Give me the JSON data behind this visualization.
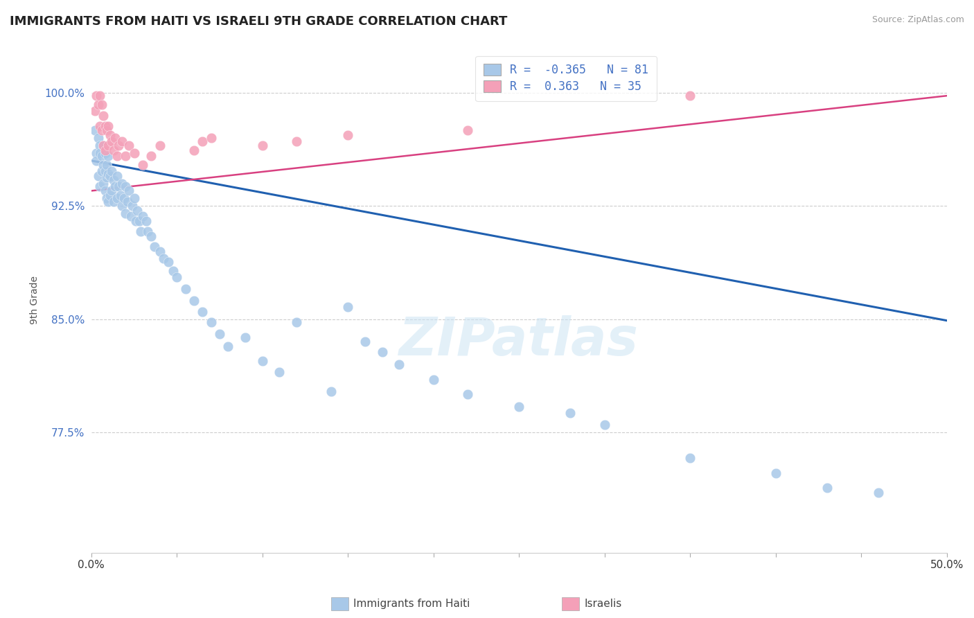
{
  "title": "IMMIGRANTS FROM HAITI VS ISRAELI 9TH GRADE CORRELATION CHART",
  "source": "Source: ZipAtlas.com",
  "ylabel": "9th Grade",
  "xlim": [
    0.0,
    0.5
  ],
  "ylim": [
    0.695,
    1.03
  ],
  "yticks": [
    0.775,
    0.85,
    0.925,
    1.0
  ],
  "yticklabels": [
    "77.5%",
    "85.0%",
    "92.5%",
    "100.0%"
  ],
  "blue_R": -0.365,
  "blue_N": 81,
  "pink_R": 0.363,
  "pink_N": 35,
  "blue_color": "#a8c8e8",
  "pink_color": "#f4a0b8",
  "blue_line_color": "#2060b0",
  "pink_line_color": "#d84080",
  "watermark": "ZIPatlas",
  "legend_label_blue": "Immigrants from Haiti",
  "legend_label_pink": "Israelis",
  "blue_line_x0": 0.0,
  "blue_line_y0": 0.955,
  "blue_line_x1": 0.5,
  "blue_line_y1": 0.849,
  "pink_line_x0": 0.0,
  "pink_line_x1": 0.5,
  "pink_line_y0": 0.935,
  "pink_line_y1": 0.998,
  "blue_x": [
    0.002,
    0.003,
    0.003,
    0.004,
    0.004,
    0.005,
    0.005,
    0.005,
    0.006,
    0.006,
    0.007,
    0.007,
    0.007,
    0.008,
    0.008,
    0.008,
    0.009,
    0.009,
    0.009,
    0.01,
    0.01,
    0.01,
    0.011,
    0.011,
    0.012,
    0.012,
    0.013,
    0.013,
    0.014,
    0.015,
    0.015,
    0.016,
    0.017,
    0.018,
    0.018,
    0.019,
    0.02,
    0.02,
    0.021,
    0.022,
    0.023,
    0.024,
    0.025,
    0.026,
    0.027,
    0.028,
    0.029,
    0.03,
    0.032,
    0.033,
    0.035,
    0.037,
    0.04,
    0.042,
    0.045,
    0.048,
    0.05,
    0.055,
    0.06,
    0.065,
    0.07,
    0.075,
    0.08,
    0.09,
    0.1,
    0.11,
    0.12,
    0.14,
    0.15,
    0.16,
    0.17,
    0.18,
    0.2,
    0.22,
    0.25,
    0.28,
    0.3,
    0.35,
    0.4,
    0.43,
    0.46
  ],
  "blue_y": [
    0.975,
    0.96,
    0.955,
    0.97,
    0.945,
    0.965,
    0.96,
    0.938,
    0.958,
    0.948,
    0.965,
    0.952,
    0.94,
    0.96,
    0.948,
    0.935,
    0.952,
    0.944,
    0.93,
    0.958,
    0.946,
    0.928,
    0.945,
    0.932,
    0.948,
    0.935,
    0.942,
    0.928,
    0.938,
    0.945,
    0.93,
    0.938,
    0.932,
    0.94,
    0.925,
    0.93,
    0.938,
    0.92,
    0.928,
    0.935,
    0.918,
    0.925,
    0.93,
    0.915,
    0.922,
    0.915,
    0.908,
    0.918,
    0.915,
    0.908,
    0.905,
    0.898,
    0.895,
    0.89,
    0.888,
    0.882,
    0.878,
    0.87,
    0.862,
    0.855,
    0.848,
    0.84,
    0.832,
    0.838,
    0.822,
    0.815,
    0.848,
    0.802,
    0.858,
    0.835,
    0.828,
    0.82,
    0.81,
    0.8,
    0.792,
    0.788,
    0.78,
    0.758,
    0.748,
    0.738,
    0.735
  ],
  "pink_x": [
    0.002,
    0.003,
    0.004,
    0.005,
    0.005,
    0.006,
    0.006,
    0.007,
    0.007,
    0.008,
    0.008,
    0.009,
    0.01,
    0.01,
    0.011,
    0.012,
    0.013,
    0.014,
    0.015,
    0.016,
    0.018,
    0.02,
    0.022,
    0.025,
    0.03,
    0.035,
    0.04,
    0.06,
    0.065,
    0.07,
    0.1,
    0.12,
    0.15,
    0.22,
    0.35
  ],
  "pink_y": [
    0.988,
    0.998,
    0.992,
    0.998,
    0.978,
    0.992,
    0.975,
    0.985,
    0.965,
    0.978,
    0.962,
    0.975,
    0.978,
    0.965,
    0.972,
    0.968,
    0.962,
    0.97,
    0.958,
    0.965,
    0.968,
    0.958,
    0.965,
    0.96,
    0.952,
    0.958,
    0.965,
    0.962,
    0.968,
    0.97,
    0.965,
    0.968,
    0.972,
    0.975,
    0.998
  ]
}
